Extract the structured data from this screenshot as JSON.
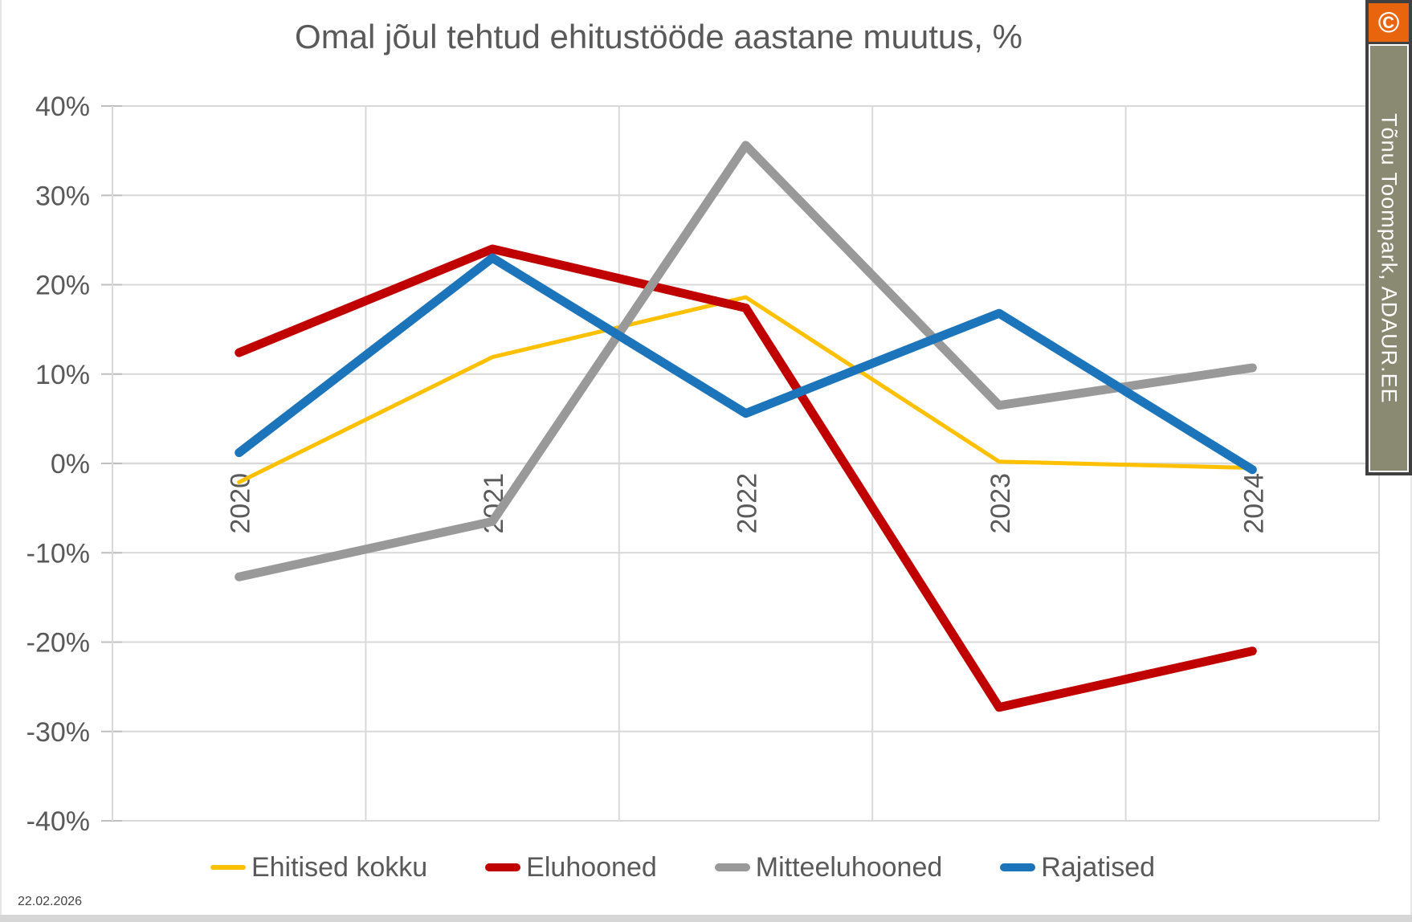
{
  "title": "Omal jõul tehtud ehitustööde aastane muutus, %",
  "chart_data": {
    "type": "line",
    "title": "Omal jõul tehtud ehitustööde aastane muutus, %",
    "categories": [
      "2020",
      "2021",
      "2022",
      "2023",
      "2024"
    ],
    "series": [
      {
        "name": "Ehitised kokku",
        "color": "#FFC000",
        "values": [
          -2.1,
          11.9,
          18.6,
          0.2,
          -0.5
        ]
      },
      {
        "name": "Eluhooned",
        "color": "#C00000",
        "values": [
          12.4,
          24.0,
          17.4,
          -27.3,
          -21.0
        ]
      },
      {
        "name": "Mitteeluhooned",
        "color": "#999999",
        "values": [
          -12.7,
          -6.5,
          35.6,
          6.5,
          10.7
        ]
      },
      {
        "name": "Rajatised",
        "color": "#1C74BB",
        "values": [
          1.2,
          23.0,
          5.6,
          16.8,
          -0.7
        ]
      }
    ],
    "ylim": [
      -40,
      40
    ],
    "ytick_step": 10,
    "y_tick_labels": [
      "40%",
      "30%",
      "20%",
      "10%",
      "0%",
      "-10%",
      "-20%",
      "-30%",
      "-40%"
    ],
    "xlabel": "",
    "ylabel": "",
    "grid": true,
    "legend_position": "bottom"
  },
  "watermark": {
    "copyright_symbol": "©",
    "text": "Tõnu Toompark, ADAUR.EE",
    "orange_color": "#E8650D",
    "olive_color": "#8A8A72"
  },
  "footer": {
    "date": "22.02.2026"
  },
  "text_color": "#595959",
  "gridline_color": "#D9D9D9",
  "tick_color": "#BFBFBF"
}
